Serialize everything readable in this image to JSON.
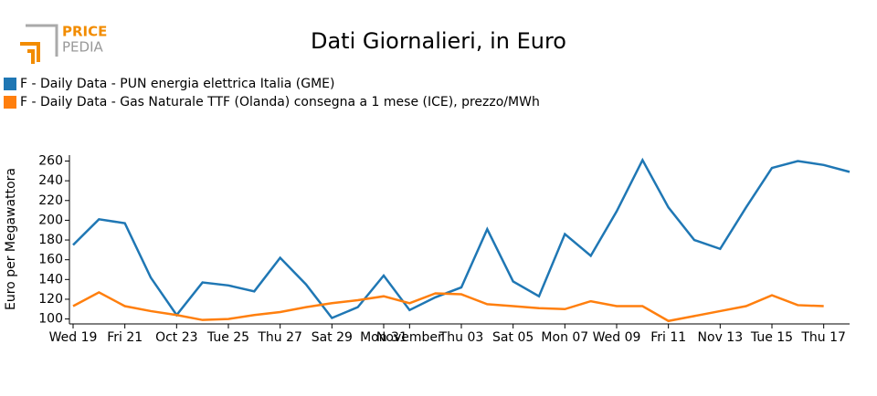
{
  "logo": {
    "top": "PRICE",
    "bottom": "PEDIA"
  },
  "chart_data": {
    "type": "line",
    "title": "Dati Giornalieri, in Euro",
    "y_label": "Euro per Megawattora",
    "categories": [
      "Wed 19",
      null,
      "Fri 21",
      null,
      "Oct 23",
      null,
      "Tue 25",
      null,
      "Thu 27",
      null,
      "Sat 29",
      null,
      "Mon 31",
      "November",
      null,
      "Thu 03",
      null,
      "Sat 05",
      null,
      "Mon 07",
      null,
      "Wed 09",
      null,
      "Fri 11",
      null,
      "Nov 13",
      null,
      "Tue 15",
      null,
      "Thu 17",
      null
    ],
    "series": [
      {
        "name": "F - Daily Data - PUN energia elettrica Italia (GME)",
        "color": "#1f77b4",
        "values": [
          175,
          201,
          197,
          142,
          104,
          137,
          134,
          128,
          162,
          135,
          101,
          112,
          144,
          109,
          122,
          132,
          191,
          138,
          123,
          186,
          164,
          209,
          261,
          213,
          180,
          171,
          213,
          253,
          260,
          256,
          249
        ]
      },
      {
        "name": "F - Daily Data - Gas Naturale TTF (Olanda) consegna a 1 mese (ICE), prezzo/MWh",
        "color": "#ff7f0e",
        "values": [
          113,
          127,
          113,
          108,
          104,
          99,
          100,
          104,
          107,
          112,
          116,
          119,
          123,
          116,
          126,
          125,
          115,
          113,
          111,
          110,
          118,
          113,
          113,
          98,
          103,
          108,
          113,
          124,
          114,
          113,
          null
        ]
      }
    ],
    "ylim": [
      95,
      266
    ],
    "yticks": [
      100,
      120,
      140,
      160,
      180,
      200,
      220,
      240,
      260
    ],
    "grid": false,
    "legend": "top-left"
  }
}
